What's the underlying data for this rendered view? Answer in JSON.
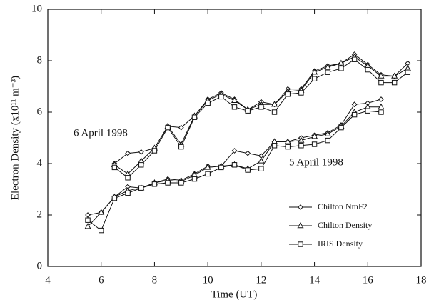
{
  "chart_data": {
    "type": "line",
    "xlabel": "Time (UT)",
    "ylabel": "Electron Density (x10¹¹ m⁻³)",
    "xlim": [
      4,
      18
    ],
    "xticks": [
      4,
      6,
      8,
      10,
      12,
      14,
      16,
      18
    ],
    "ylim": [
      0,
      10
    ],
    "yticks": [
      0,
      2,
      4,
      6,
      8,
      10
    ],
    "color": "#111111",
    "annotations": [
      "6 April 1998",
      "5 April 1998"
    ],
    "legend": [
      {
        "name": "Chilton NmF2",
        "marker": "diamond"
      },
      {
        "name": "Chilton Density",
        "marker": "triangle"
      },
      {
        "name": "IRIS Density",
        "marker": "square"
      }
    ],
    "series": [
      {
        "marker": "diamond",
        "x": [
          5.5,
          6,
          6.5,
          7,
          7.5,
          8,
          8.5,
          9,
          9.5,
          10,
          10.5,
          11,
          11.5,
          12,
          12.5,
          13,
          13.5,
          14,
          14.5,
          15,
          15.5,
          16,
          16.5
        ],
        "values": [
          2.0,
          2.1,
          2.7,
          3.1,
          3.05,
          3.25,
          3.4,
          3.35,
          3.6,
          3.9,
          3.9,
          4.5,
          4.4,
          4.3,
          4.85,
          4.85,
          5.0,
          5.1,
          5.2,
          5.5,
          6.3,
          6.35,
          6.5
        ]
      },
      {
        "marker": "triangle",
        "x": [
          5.5,
          6,
          6.5,
          7,
          7.5,
          8,
          8.5,
          9,
          9.5,
          10,
          10.5,
          11,
          11.5,
          12,
          12.5,
          13,
          13.5,
          14,
          14.5,
          15,
          15.5,
          16,
          16.5
        ],
        "values": [
          1.55,
          2.1,
          2.7,
          2.95,
          3.05,
          3.25,
          3.35,
          3.3,
          3.55,
          3.85,
          3.9,
          3.95,
          3.8,
          4.1,
          4.85,
          4.85,
          4.9,
          5.05,
          5.15,
          5.45,
          6.0,
          6.2,
          6.2
        ]
      },
      {
        "marker": "square",
        "x": [
          5.5,
          6,
          6.5,
          7,
          7.5,
          8,
          8.5,
          9,
          9.5,
          10,
          10.5,
          11,
          11.5,
          12,
          12.5,
          13,
          13.5,
          14,
          14.5,
          15,
          15.5,
          16,
          16.5
        ],
        "values": [
          1.8,
          1.4,
          2.65,
          2.85,
          3.05,
          3.2,
          3.25,
          3.25,
          3.4,
          3.6,
          3.85,
          3.95,
          3.75,
          3.8,
          4.7,
          4.65,
          4.7,
          4.75,
          4.9,
          5.4,
          5.9,
          6.05,
          6.0
        ]
      },
      {
        "marker": "diamond",
        "x": [
          6.5,
          7,
          7.5,
          8,
          8.5,
          9,
          9.5,
          10,
          10.5,
          11,
          11.5,
          12,
          12.5,
          13,
          13.5,
          14,
          14.5,
          15,
          15.5,
          16,
          16.5,
          17,
          17.5
        ],
        "values": [
          4.0,
          4.4,
          4.45,
          4.6,
          5.45,
          5.4,
          5.85,
          6.5,
          6.75,
          6.5,
          6.1,
          6.4,
          6.3,
          6.9,
          6.9,
          7.6,
          7.8,
          7.9,
          8.25,
          7.85,
          7.45,
          7.4,
          7.9
        ]
      },
      {
        "marker": "triangle",
        "x": [
          6.5,
          7,
          7.5,
          8,
          8.5,
          9,
          9.5,
          10,
          10.5,
          11,
          11.5,
          12,
          12.5,
          13,
          13.5,
          14,
          14.5,
          15,
          15.5,
          16,
          16.5,
          17,
          17.5
        ],
        "values": [
          3.95,
          3.6,
          4.1,
          4.6,
          5.45,
          4.75,
          5.85,
          6.45,
          6.7,
          6.45,
          6.1,
          6.3,
          6.3,
          6.8,
          6.85,
          7.55,
          7.75,
          7.9,
          8.15,
          7.8,
          7.4,
          7.4,
          7.7
        ]
      },
      {
        "marker": "square",
        "x": [
          6.5,
          7,
          7.5,
          8,
          8.5,
          9,
          9.5,
          10,
          10.5,
          11,
          11.5,
          12,
          12.5,
          13,
          13.5,
          14,
          14.5,
          15,
          15.5,
          16,
          16.5,
          17,
          17.5
        ],
        "values": [
          3.85,
          3.45,
          3.95,
          4.5,
          5.4,
          4.65,
          5.8,
          6.35,
          6.6,
          6.2,
          6.05,
          6.2,
          6.0,
          6.7,
          6.75,
          7.3,
          7.55,
          7.7,
          8.05,
          7.65,
          7.15,
          7.15,
          7.55
        ]
      }
    ]
  }
}
